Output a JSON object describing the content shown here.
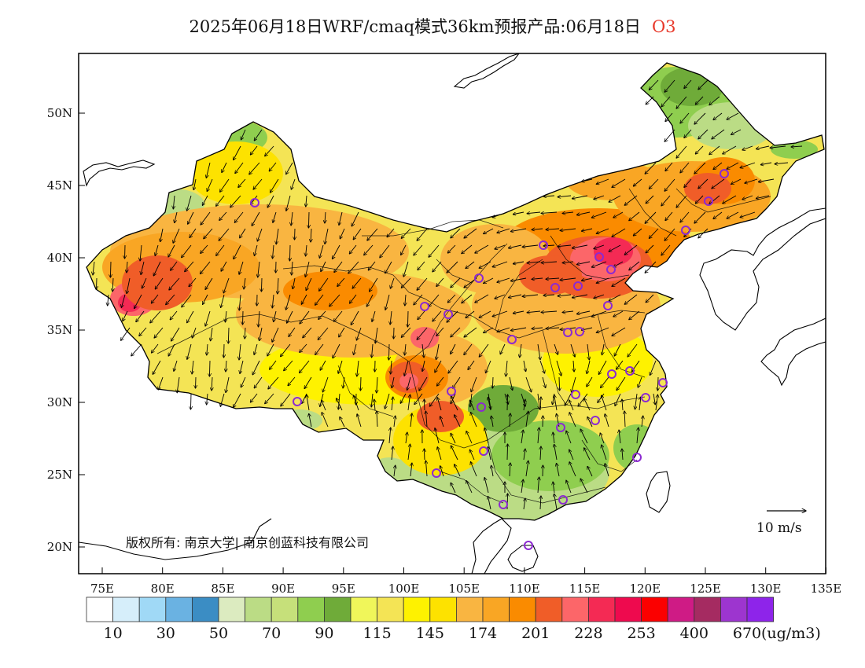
{
  "title": {
    "main": "2025年06月18日WRF/cmaq模式36km预报产品:06月18日",
    "species": "O3"
  },
  "map": {
    "lat_ticks": [
      "50N",
      "45N",
      "40N",
      "35N",
      "30N",
      "25N",
      "20N"
    ],
    "lon_ticks": [
      "75E",
      "80E",
      "85E",
      "90E",
      "95E",
      "100E",
      "105E",
      "110E",
      "115E",
      "120E",
      "125E",
      "130E",
      "135E"
    ],
    "copyright": "版权所有: 南京大学| 南京创蓝科技有限公司",
    "wind_reference_label": "10 m/s"
  },
  "colorbar": {
    "colors": [
      "#ffffff",
      "#d6eefa",
      "#a0d9f6",
      "#6ab2e2",
      "#3b8dc4",
      "#dcebc0",
      "#bbdc85",
      "#c6e07a",
      "#8fce4f",
      "#6fab39",
      "#f0f65a",
      "#f4e455",
      "#fef200",
      "#fde200",
      "#f9b541",
      "#f9a624",
      "#fa8b00",
      "#f05d28",
      "#fc6669",
      "#f42a54",
      "#ee0a4e",
      "#fb0000",
      "#cf1b85",
      "#a52b61",
      "#9d35cf",
      "#8e24ea"
    ],
    "labels": [
      "10",
      "30",
      "50",
      "70",
      "90",
      "115",
      "145",
      "174",
      "201",
      "228",
      "253",
      "400",
      "670"
    ],
    "unit": "(ug/m3)"
  }
}
